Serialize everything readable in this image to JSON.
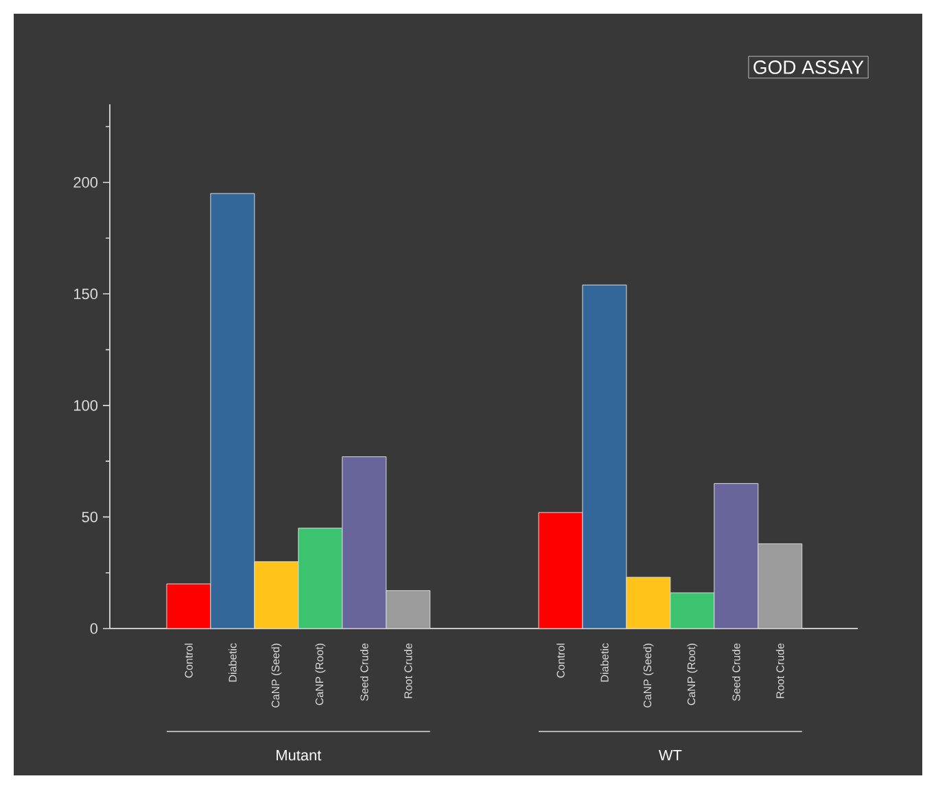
{
  "chart_data": {
    "type": "bar",
    "title": "GOD ASSAY",
    "categories": [
      "Mutant",
      "WT"
    ],
    "series": [
      {
        "name": "Control",
        "color": "#ff0000",
        "values": [
          20,
          52
        ]
      },
      {
        "name": "Diabetic",
        "color": "#336699",
        "values": [
          195,
          154
        ]
      },
      {
        "name": "CaNP (Seed)",
        "color": "#ffc31a",
        "values": [
          30,
          23
        ]
      },
      {
        "name": "CaNP (Root)",
        "color": "#3cc36f",
        "values": [
          45,
          16
        ]
      },
      {
        "name": "Seed Crude",
        "color": "#676599",
        "values": [
          77,
          65
        ]
      },
      {
        "name": "Root Crude",
        "color": "#9b9b9b",
        "values": [
          17,
          38
        ]
      }
    ],
    "ylim": [
      0,
      235
    ],
    "yticks": [
      0,
      50,
      100,
      150,
      200
    ],
    "grid": false,
    "legend": false
  }
}
